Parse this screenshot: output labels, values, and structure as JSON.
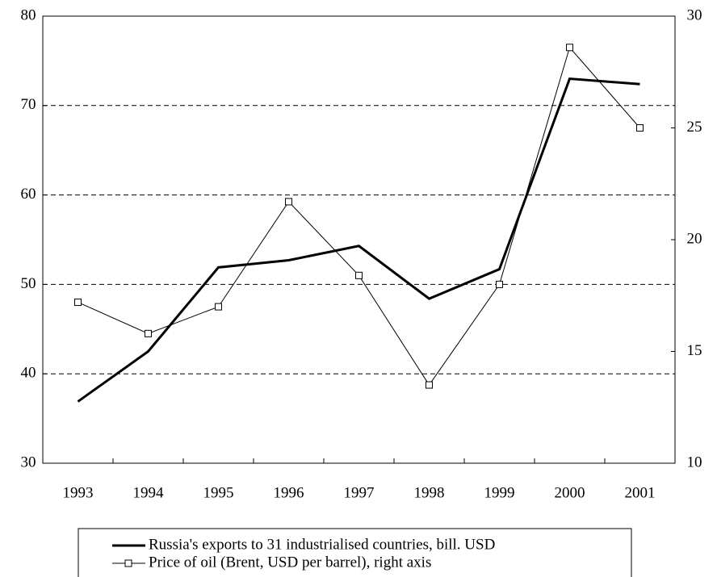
{
  "chart_data": {
    "type": "line",
    "categories": [
      "1993",
      "1994",
      "1995",
      "1996",
      "1997",
      "1998",
      "1999",
      "2000",
      "2001"
    ],
    "series": [
      {
        "name": "Russia's exports to 31 industrialised countries, bill. USD",
        "color": "#000000",
        "values": [
          36.9,
          42.5,
          51.9,
          52.7,
          54.3,
          48.4,
          51.7,
          73.0,
          72.4
        ]
      },
      {
        "name": "Price of oil (Brent, USD per barrel), right axis",
        "color": "#000000",
        "axis": "y2",
        "values": [
          17.2,
          15.8,
          17.0,
          21.7,
          18.4,
          13.5,
          18.0,
          28.6,
          25.0
        ]
      }
    ],
    "ylim": [
      30,
      80
    ],
    "yticks": [
      30,
      40,
      50,
      60,
      70,
      80
    ],
    "y2lim": [
      10,
      30
    ],
    "y2ticks": [
      10,
      15,
      20,
      25,
      30
    ],
    "grid": true
  }
}
